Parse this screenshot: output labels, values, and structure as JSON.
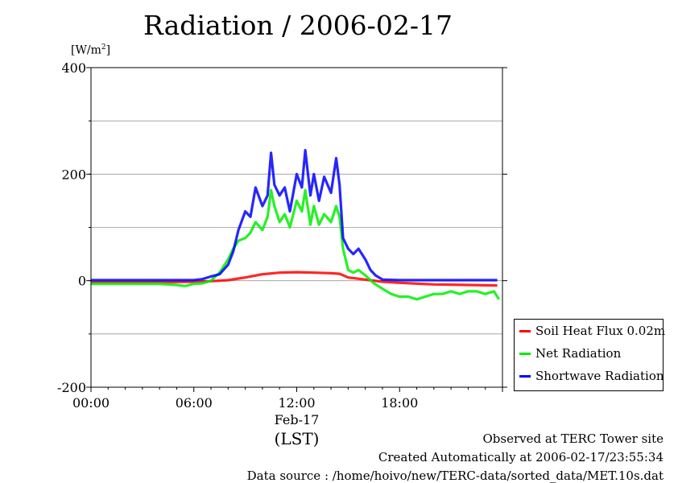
{
  "title": "Radiation / 2006-02-17",
  "ylabel": "[W/m",
  "ylabel_sup": "2",
  "ylabel_end": "]",
  "date_label": "Feb-17",
  "xlabel": "(LST)",
  "footer": {
    "line1": "Observed at TERC Tower site",
    "line2": "Created Automatically at 2006-02-17/23:55:34",
    "line3": "Data source : /home/hoivo/new/TERC-data/sorted_data/MET.10s.dat"
  },
  "colors": {
    "soil": "#ff0000",
    "net": "#00ee00",
    "shortwave": "#0000ff",
    "grid": "#999999"
  },
  "chart_data": {
    "type": "line",
    "xlabel": "(LST)",
    "ylabel": "[W/m2]",
    "xlim": [
      0,
      24
    ],
    "ylim": [
      -200,
      400
    ],
    "x_tick_values": [
      0,
      6,
      12,
      18
    ],
    "x_tick_labels": [
      "00:00",
      "06:00",
      "12:00",
      "18:00"
    ],
    "y_tick_values": [
      -200,
      0,
      200,
      400
    ],
    "y_tick_labels": [
      "-200",
      "0",
      "200",
      "400"
    ],
    "y_grid": [
      -100,
      0,
      100,
      200,
      300
    ],
    "grid": true,
    "legend_position": "right-bottom",
    "series": [
      {
        "name": "Soil Heat Flux 0.02m",
        "color": "#ff0000",
        "x": [
          0,
          3,
          6,
          7,
          8,
          9,
          10,
          11,
          12,
          13,
          14,
          14.5,
          15,
          16,
          17,
          18,
          20,
          22,
          23.7
        ],
        "values": [
          -3,
          -3,
          -2,
          -1,
          1,
          6,
          12,
          15,
          16,
          15,
          14,
          13,
          6,
          2,
          -2,
          -4,
          -7,
          -8,
          -9
        ]
      },
      {
        "name": "Net Radiation",
        "color": "#00ee00",
        "x": [
          0,
          2,
          4,
          5,
          5.5,
          6,
          6.5,
          7,
          7.5,
          8,
          8.3,
          8.6,
          9,
          9.3,
          9.6,
          10,
          10.3,
          10.5,
          10.7,
          11,
          11.3,
          11.6,
          12,
          12.3,
          12.5,
          12.8,
          13,
          13.3,
          13.6,
          14,
          14.3,
          14.5,
          14.7,
          15,
          15.3,
          15.6,
          16,
          16.5,
          17,
          17.5,
          18,
          18.5,
          19,
          19.5,
          20,
          20.5,
          21,
          21.5,
          22,
          22.5,
          23,
          23.5,
          23.8
        ],
        "values": [
          -6,
          -6,
          -6,
          -8,
          -10,
          -6,
          -5,
          0,
          15,
          40,
          60,
          75,
          80,
          90,
          110,
          95,
          120,
          170,
          140,
          110,
          125,
          100,
          150,
          130,
          170,
          105,
          140,
          105,
          125,
          110,
          140,
          120,
          60,
          20,
          15,
          20,
          10,
          -5,
          -15,
          -25,
          -30,
          -30,
          -35,
          -30,
          -25,
          -25,
          -20,
          -25,
          -20,
          -20,
          -25,
          -20,
          -35
        ]
      },
      {
        "name": "Shortwave Radiation",
        "color": "#0000ff",
        "x": [
          0,
          3,
          6,
          6.5,
          7,
          7.5,
          8,
          8.3,
          8.6,
          9,
          9.3,
          9.6,
          10,
          10.3,
          10.5,
          10.7,
          11,
          11.3,
          11.6,
          12,
          12.3,
          12.5,
          12.8,
          13,
          13.3,
          13.6,
          14,
          14.3,
          14.5,
          14.7,
          15,
          15.3,
          15.6,
          16,
          16.3,
          16.6,
          17,
          18,
          20,
          22,
          23.7
        ],
        "values": [
          1,
          1,
          1,
          3,
          8,
          12,
          30,
          55,
          95,
          130,
          120,
          175,
          140,
          160,
          240,
          180,
          160,
          175,
          130,
          200,
          175,
          245,
          160,
          200,
          150,
          195,
          165,
          230,
          180,
          80,
          60,
          50,
          60,
          40,
          20,
          10,
          2,
          1,
          1,
          1,
          1
        ]
      }
    ]
  },
  "legend": [
    {
      "label": "Soil Heat Flux 0.02m",
      "color": "#ff0000"
    },
    {
      "label": "Net Radiation",
      "color": "#00ee00"
    },
    {
      "label": "Shortwave Radiation",
      "color": "#0000ff"
    }
  ]
}
